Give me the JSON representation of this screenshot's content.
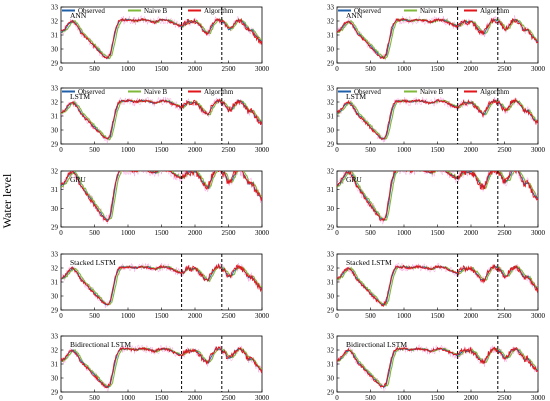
{
  "figure": {
    "ylabel": "Water level",
    "legend": [
      "Observed",
      "Naive B",
      "Algorithm"
    ],
    "colors": {
      "Observed": "#1f5fa8",
      "Naive B": "#7fb83a",
      "Algorithm": "#e0161b",
      "noise": "#ff66cc"
    }
  },
  "chart_data": [
    {
      "type": "line",
      "title": "ANN",
      "legend": true,
      "xlim": [
        0,
        3000
      ],
      "ylim": [
        29,
        33
      ],
      "xticks": [
        0,
        500,
        1000,
        1500,
        2000,
        2500,
        3000
      ],
      "yticks": [
        29,
        30,
        31,
        32,
        33
      ],
      "vlines": [
        1800,
        2400
      ],
      "series": [
        "Observed",
        "Naive B",
        "Algorithm"
      ]
    },
    {
      "type": "line",
      "title": "ANN",
      "legend": true,
      "xlim": [
        0,
        3000
      ],
      "ylim": [
        29,
        33
      ],
      "xticks": [
        0,
        500,
        1000,
        1500,
        2000,
        2500,
        3000
      ],
      "yticks": [
        29,
        30,
        31,
        32,
        33
      ],
      "vlines": [
        1800,
        2400
      ],
      "series": [
        "Observed",
        "Naive B",
        "Algorithm"
      ]
    },
    {
      "type": "line",
      "title": "LSTM",
      "legend": true,
      "xlim": [
        0,
        3000
      ],
      "ylim": [
        29,
        33
      ],
      "xticks": [
        0,
        500,
        1000,
        1500,
        2000,
        2500,
        3000
      ],
      "yticks": [
        29,
        30,
        31,
        32,
        33
      ],
      "vlines": [
        1800,
        2400
      ],
      "series": [
        "Observed",
        "Naive B",
        "Algorithm"
      ]
    },
    {
      "type": "line",
      "title": "LSTM",
      "legend": true,
      "xlim": [
        0,
        3000
      ],
      "ylim": [
        29,
        33
      ],
      "xticks": [
        0,
        500,
        1000,
        1500,
        2000,
        2500,
        3000
      ],
      "yticks": [
        29,
        30,
        31,
        32,
        33
      ],
      "vlines": [
        1800,
        2400
      ],
      "series": [
        "Observed",
        "Naive B",
        "Algorithm"
      ]
    },
    {
      "type": "line",
      "title": "GRU",
      "legend": false,
      "xlim": [
        0,
        3000
      ],
      "ylim": [
        29,
        32
      ],
      "xticks": [
        0,
        500,
        1000,
        1500,
        2000,
        2500,
        3000
      ],
      "yticks": [
        29,
        30,
        31,
        32
      ],
      "vlines": [
        1800,
        2400
      ],
      "series": [
        "Observed",
        "Naive B",
        "Algorithm"
      ]
    },
    {
      "type": "line",
      "title": "GRU",
      "legend": false,
      "xlim": [
        0,
        3000
      ],
      "ylim": [
        29,
        32
      ],
      "xticks": [
        0,
        500,
        1000,
        1500,
        2000,
        2500,
        3000
      ],
      "yticks": [
        29,
        30,
        31,
        32
      ],
      "vlines": [
        1800,
        2400
      ],
      "series": [
        "Observed",
        "Naive B",
        "Algorithm"
      ]
    },
    {
      "type": "line",
      "title": "Stacked LSTM",
      "legend": false,
      "xlim": [
        0,
        3000
      ],
      "ylim": [
        29,
        33
      ],
      "xticks": [
        0,
        500,
        1000,
        1500,
        2000,
        2500,
        3000
      ],
      "yticks": [
        29,
        30,
        31,
        32,
        33
      ],
      "vlines": [
        1800,
        2400
      ],
      "series": [
        "Observed",
        "Naive B",
        "Algorithm"
      ]
    },
    {
      "type": "line",
      "title": "Stacked LSTM",
      "legend": false,
      "xlim": [
        0,
        3000
      ],
      "ylim": [
        29,
        33
      ],
      "xticks": [
        0,
        500,
        1000,
        1500,
        2000,
        2500,
        3000
      ],
      "yticks": [
        29,
        30,
        31,
        32,
        33
      ],
      "vlines": [
        1800,
        2400
      ],
      "series": [
        "Observed",
        "Naive B",
        "Algorithm"
      ]
    },
    {
      "type": "line",
      "title": "Bidirectional LSTM",
      "legend": false,
      "xlim": [
        0,
        3000
      ],
      "ylim": [
        29,
        33
      ],
      "xticks": [
        0,
        500,
        1000,
        1500,
        2000,
        2500,
        3000
      ],
      "yticks": [
        29,
        30,
        31,
        32,
        33
      ],
      "vlines": [
        1800,
        2400
      ],
      "series": [
        "Observed",
        "Naive B",
        "Algorithm"
      ]
    },
    {
      "type": "line",
      "title": "Bidirectional LSTM",
      "legend": false,
      "xlim": [
        0,
        3000
      ],
      "ylim": [
        29,
        33
      ],
      "xticks": [
        0,
        500,
        1000,
        1500,
        2000,
        2500,
        3000
      ],
      "yticks": [
        29,
        30,
        31,
        32,
        33
      ],
      "vlines": [
        1800,
        2400
      ],
      "series": [
        "Observed",
        "Naive B",
        "Algorithm"
      ]
    }
  ],
  "observed_profile": {
    "x": [
      0,
      60,
      120,
      180,
      240,
      300,
      360,
      420,
      480,
      540,
      600,
      650,
      700,
      740,
      780,
      820,
      860,
      900,
      950,
      1000,
      1100,
      1200,
      1300,
      1400,
      1500,
      1600,
      1700,
      1800,
      1850,
      1900,
      1950,
      2000,
      2050,
      2100,
      2150,
      2200,
      2250,
      2300,
      2350,
      2400,
      2450,
      2500,
      2550,
      2600,
      2650,
      2700,
      2750,
      2800,
      2850,
      2900,
      2950,
      3000
    ],
    "y": [
      31.2,
      31.4,
      31.8,
      32.0,
      31.7,
      31.2,
      30.9,
      30.6,
      30.3,
      30.0,
      29.7,
      29.45,
      29.35,
      29.6,
      30.5,
      31.4,
      31.9,
      32.1,
      32.05,
      32.1,
      32.0,
      32.1,
      32.05,
      31.9,
      32.1,
      32.05,
      31.8,
      31.6,
      31.8,
      32.0,
      31.9,
      32.0,
      31.8,
      31.5,
      31.2,
      31.1,
      31.6,
      32.0,
      32.1,
      32.0,
      31.8,
      31.4,
      31.5,
      31.9,
      32.1,
      32.0,
      31.7,
      31.3,
      31.4,
      31.0,
      30.7,
      30.5
    ]
  }
}
